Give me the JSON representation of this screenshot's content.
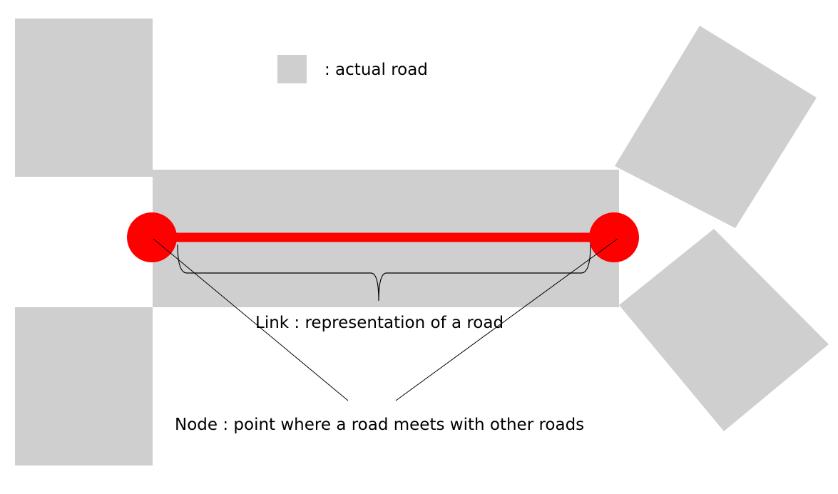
{
  "colors": {
    "road": "#d0cfd0",
    "link": "#ff0000",
    "node": "#ff0000",
    "line": "#000000",
    "background": "#ffffff"
  },
  "legend": {
    "text": ": actual road"
  },
  "labels": {
    "link": "Link : representation of a road",
    "node": "Node : point where a road meets with other roads"
  }
}
